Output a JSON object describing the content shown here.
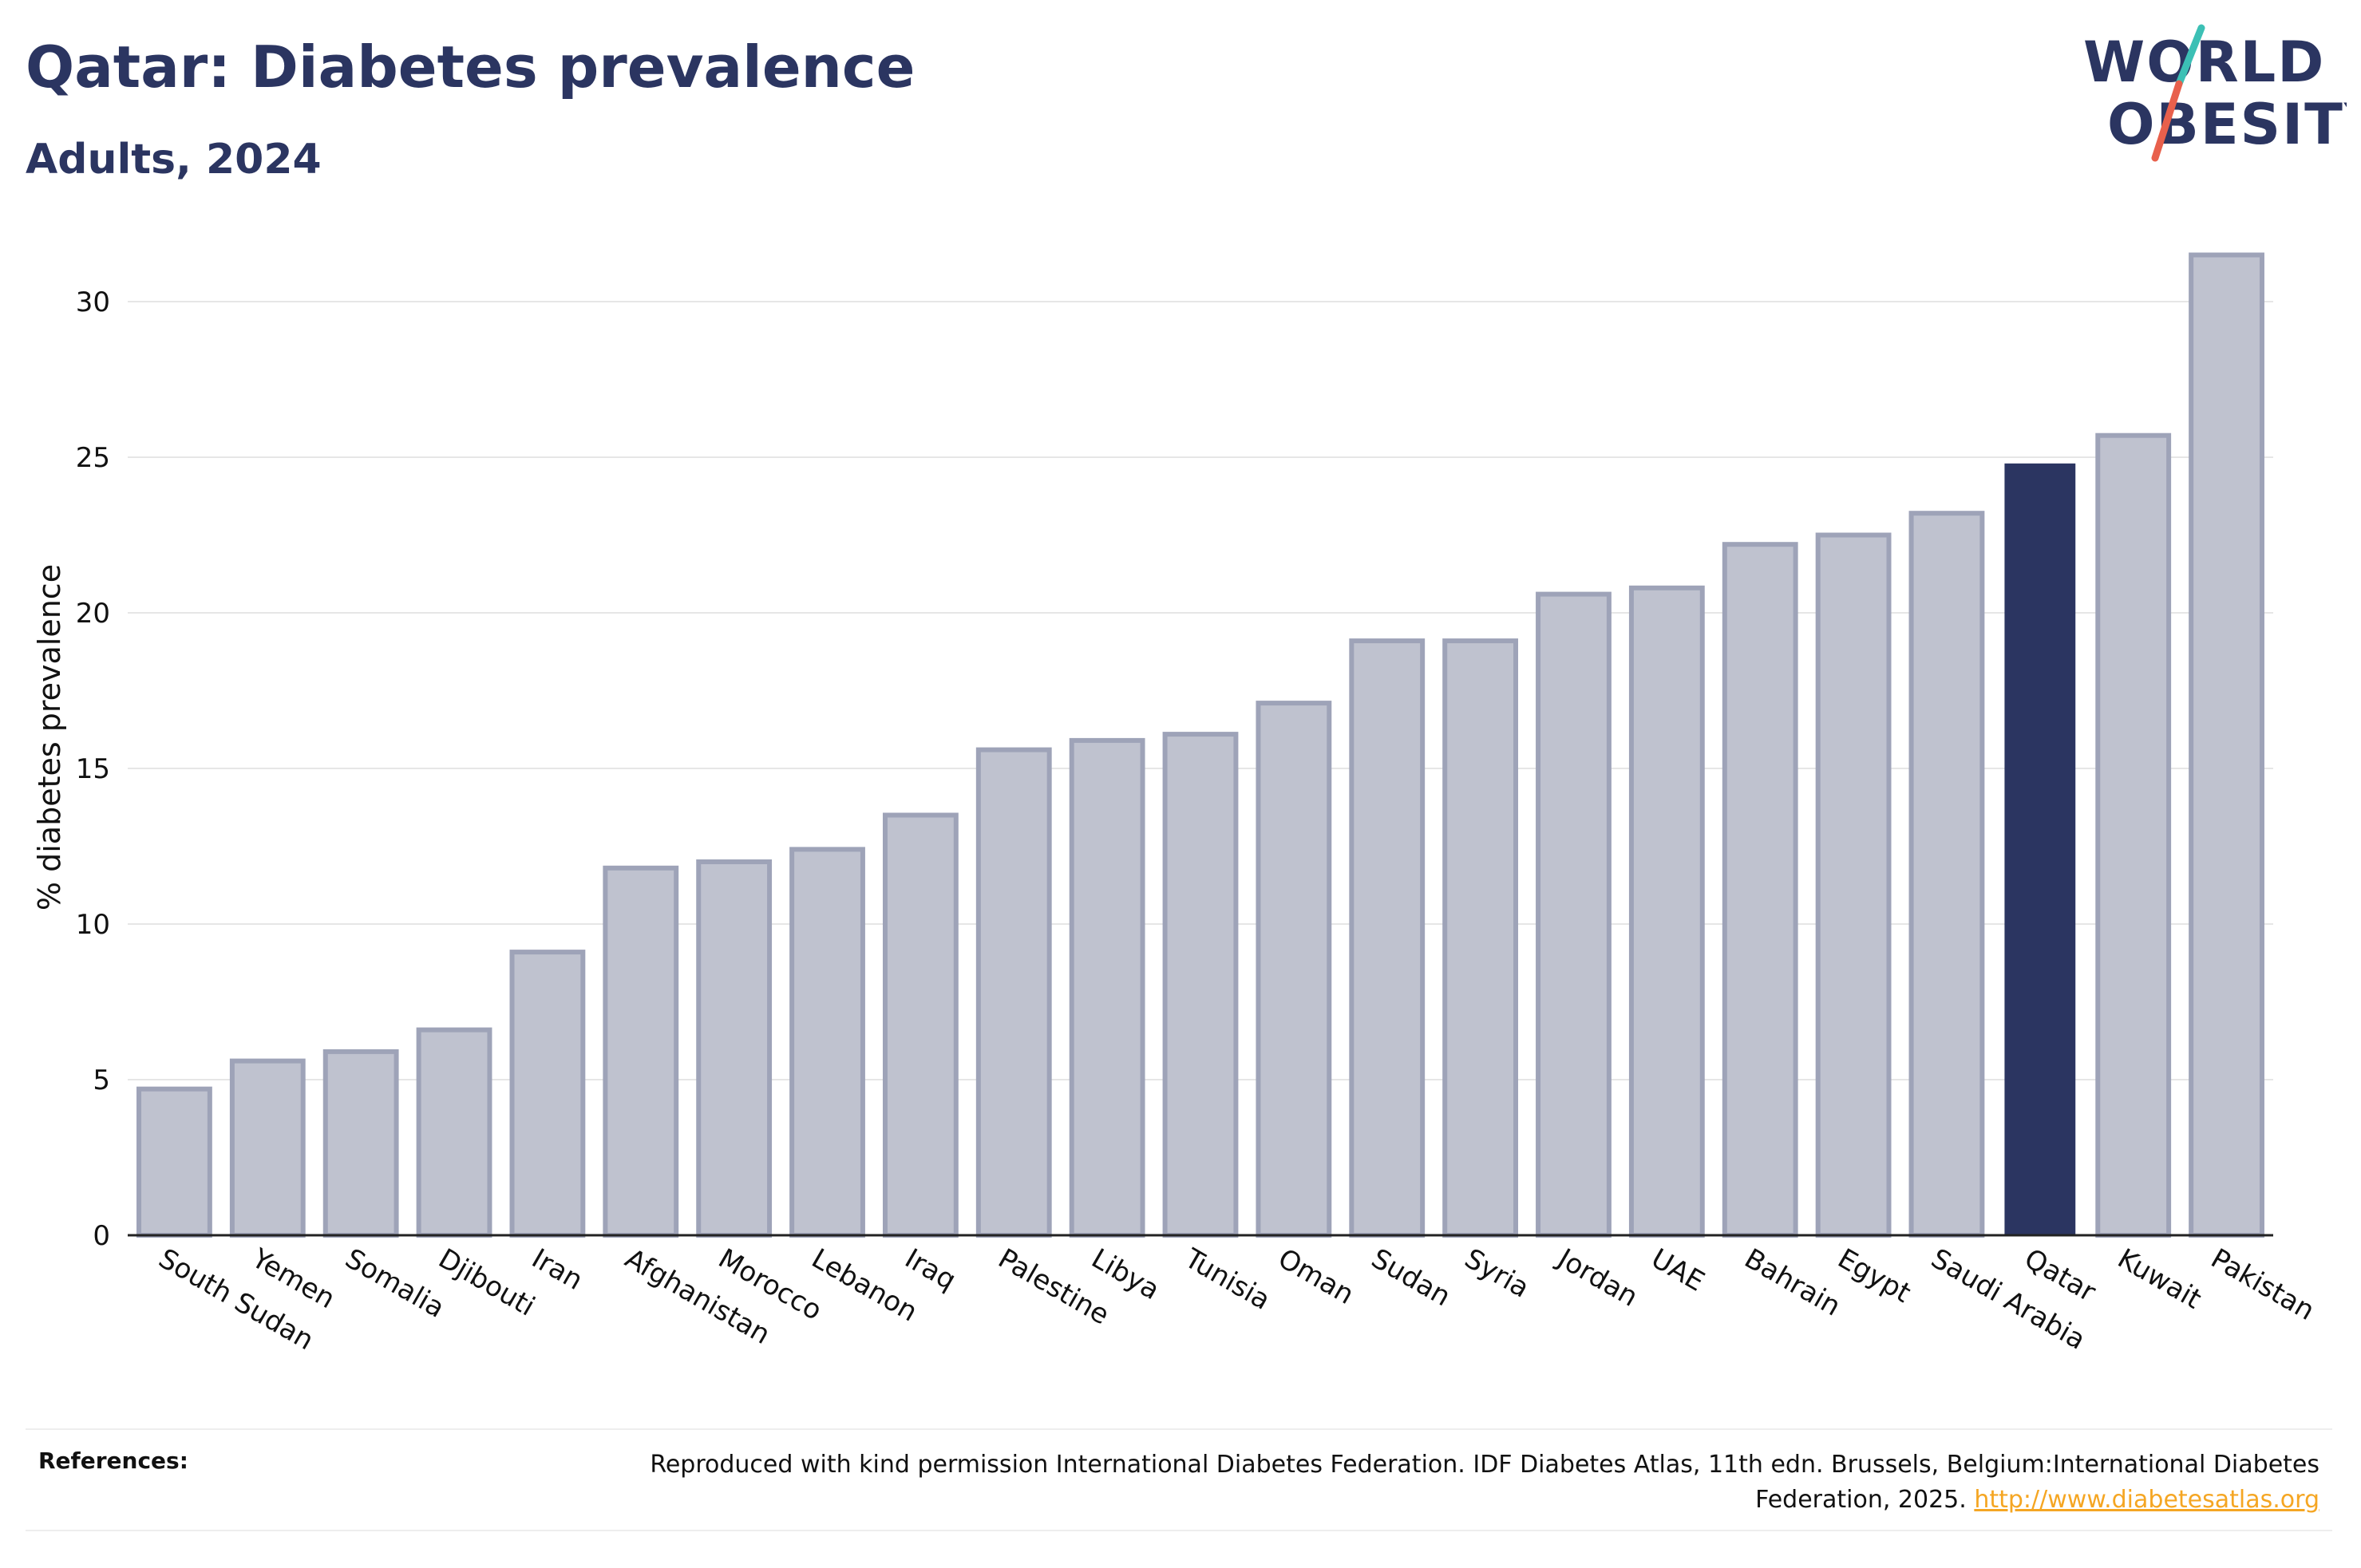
{
  "header": {
    "title": "Qatar: Diabetes prevalence",
    "subtitle": "Adults, 2024"
  },
  "logo": {
    "line1": "WORLD",
    "line2": "OBESITY",
    "slash_colors": [
      "#3cc0b5",
      "#e8604c"
    ]
  },
  "colors": {
    "bar_default": "#bfc2cf",
    "bar_border": "#9ea3b8",
    "bar_highlight": "#2b3561",
    "title": "#2b3561",
    "link": "#f5a623"
  },
  "chart_data": {
    "type": "bar",
    "title": "Qatar: Diabetes prevalence",
    "subtitle": "Adults, 2024",
    "xlabel": "",
    "ylabel": "% diabetes prevalence",
    "ylim": [
      0,
      32
    ],
    "yticks": [
      0,
      5,
      10,
      15,
      20,
      25,
      30
    ],
    "grid": true,
    "highlight": "Qatar",
    "categories": [
      "South Sudan",
      "Yemen",
      "Somalia",
      "Djibouti",
      "Iran",
      "Afghanistan",
      "Morocco",
      "Lebanon",
      "Iraq",
      "Palestine",
      "Libya",
      "Tunisia",
      "Oman",
      "Sudan",
      "Syria",
      "Jordan",
      "UAE",
      "Bahrain",
      "Egypt",
      "Saudi Arabia",
      "Qatar",
      "Kuwait",
      "Pakistan"
    ],
    "values": [
      4.7,
      5.6,
      5.9,
      6.6,
      9.1,
      11.8,
      12.0,
      12.4,
      13.5,
      15.6,
      15.9,
      16.1,
      17.1,
      19.1,
      19.1,
      20.6,
      20.8,
      22.2,
      22.5,
      23.2,
      24.8,
      25.7,
      31.5
    ]
  },
  "references": {
    "label": "References:",
    "text": "Reproduced with kind permission International Diabetes Federation. IDF Diabetes Atlas, 11th edn. Brussels, Belgium:International Diabetes Federation, 2025.",
    "link": "http://www.diabetesatlas.org"
  }
}
